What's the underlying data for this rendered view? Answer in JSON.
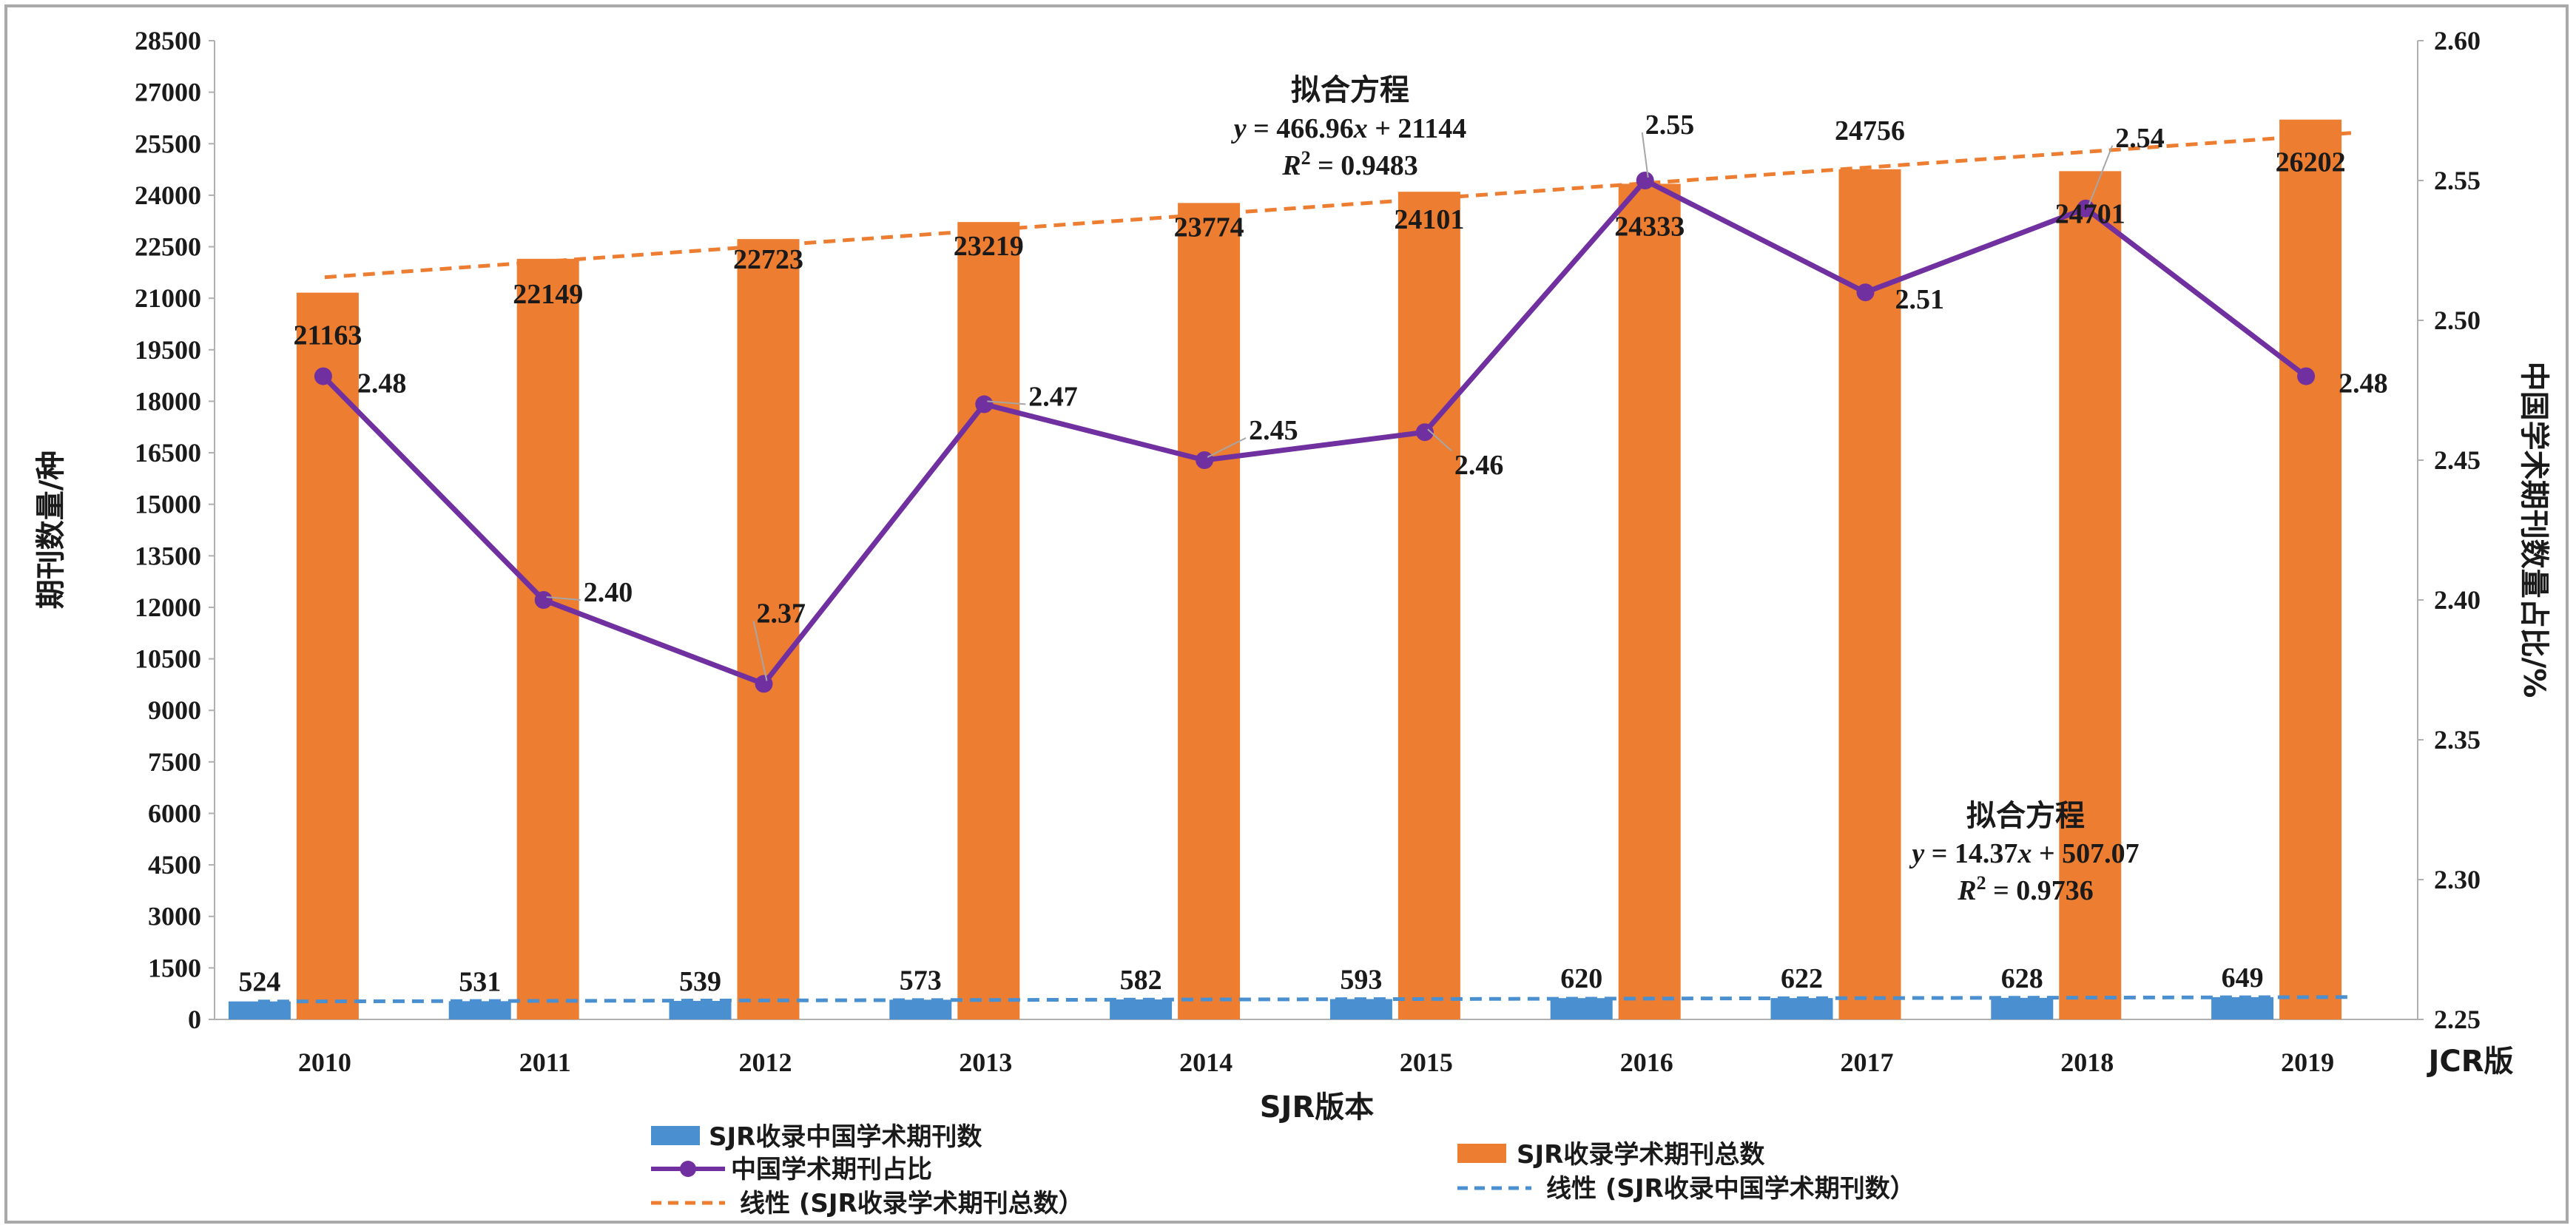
{
  "chart_data": {
    "type": "bar",
    "categories": [
      "2010",
      "2011",
      "2012",
      "2013",
      "2014",
      "2015",
      "2016",
      "2017",
      "2018",
      "2019"
    ],
    "series": [
      {
        "name": "SJR收录中国学术期刊数",
        "kind": "bar",
        "axis": "left",
        "color": "#4a90d0",
        "values": [
          524,
          531,
          539,
          573,
          582,
          593,
          620,
          622,
          628,
          649
        ]
      },
      {
        "name": "SJR收录学术期刊总数",
        "kind": "bar",
        "axis": "left",
        "color": "#ed7d31",
        "values": [
          21163,
          22149,
          22723,
          23219,
          23774,
          24101,
          24333,
          24756,
          24701,
          26202
        ]
      },
      {
        "name": "中国学术期刊占比",
        "kind": "line",
        "axis": "right",
        "color": "#7030a0",
        "values": [
          2.48,
          2.4,
          2.37,
          2.47,
          2.45,
          2.46,
          2.55,
          2.51,
          2.54,
          2.48
        ],
        "labels": [
          "2.48",
          "2.40",
          "2.37",
          "2.47",
          "2.45",
          "2.46",
          "2.55",
          "2.51",
          "2.54",
          "2.48"
        ]
      },
      {
        "name": "线性 (SJR收录学术期刊总数）",
        "kind": "trend",
        "axis": "left",
        "color": "#ed7d31",
        "slope": 466.96,
        "intercept": 21144
      },
      {
        "name": "线性 (SJR收录中国学术期刊数）",
        "kind": "trend",
        "axis": "left",
        "color": "#4a90d0",
        "slope": 14.37,
        "intercept": 507.07
      }
    ],
    "xlabel": "SJR版本",
    "x2label": "JCR版",
    "ylabel": "期刊数量/种",
    "y2label": "中国学术期刊数量占比/%",
    "ylim": [
      0,
      28500
    ],
    "yticks": [
      "0",
      "1500",
      "3000",
      "4500",
      "6000",
      "7500",
      "9000",
      "10500",
      "12000",
      "13500",
      "15000",
      "16500",
      "18000",
      "19500",
      "21000",
      "22500",
      "24000",
      "25500",
      "27000",
      "28500"
    ],
    "y2lim": [
      2.25,
      2.6
    ],
    "y2ticks": [
      "2.25",
      "2.30",
      "2.35",
      "2.40",
      "2.45",
      "2.50",
      "2.55",
      "2.60"
    ],
    "annotations": {
      "total_fit": {
        "title": "拟合方程",
        "eq_y": "y",
        "eq_rest": " = 466.96",
        "eq_x": "x",
        "eq_tail": " + 21144",
        "r2": "R",
        "r2_rest": " = 0.9483"
      },
      "china_fit": {
        "title": "拟合方程",
        "eq_y": "y",
        "eq_rest": " = 14.37",
        "eq_x": "x",
        "eq_tail": " + 507.07",
        "r2": "R",
        "r2_rest": " = 0.9736"
      }
    },
    "legend": {
      "china_bar": "SJR收录中国学术期刊数",
      "total_bar": "SJR收录学术期刊总数",
      "ratio_line": "中国学术期刊占比",
      "total_trend": "线性 (SJR收录学术期刊总数）",
      "china_trend": "线性 (SJR收录中国学术期刊数）"
    }
  }
}
